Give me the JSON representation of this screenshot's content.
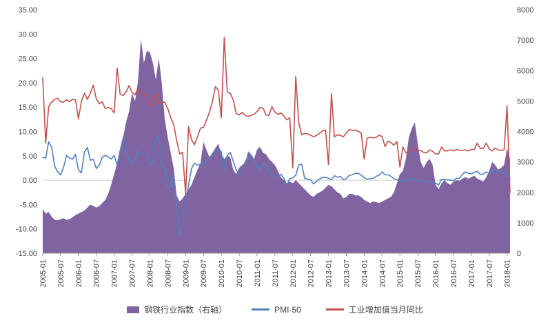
{
  "chart_data": {
    "type": "combo",
    "title": "",
    "x_start": "2005-01",
    "x_end": "2018-02",
    "x_tick_every": 6,
    "x_tick_labels": [
      "2005-01",
      "2005-07",
      "2006-01",
      "2006-07",
      "2007-01",
      "2007-07",
      "2008-01",
      "2008-07",
      "2009-01",
      "2009-07",
      "2010-01",
      "2010-07",
      "2011-01",
      "2011-07",
      "2012-01",
      "2012-07",
      "2013-01",
      "2013-07",
      "2014-01",
      "2014-07",
      "2015-01",
      "2015-07",
      "2016-01",
      "2016-07",
      "2017-01",
      "2017-07",
      "2018-01"
    ],
    "left_axis": {
      "min": -15,
      "max": 35,
      "step": 5,
      "tick_labels": [
        "35.00",
        "30.00",
        "25.00",
        "20.00",
        "15.00",
        "10.00",
        "5.00",
        "0.00",
        "-5.00",
        "-10.00",
        "-15.00"
      ]
    },
    "right_axis": {
      "min": 0,
      "max": 8000,
      "step": 1000,
      "tick_labels": [
        "8000",
        "7000",
        "6000",
        "5000",
        "4000",
        "3000",
        "2000",
        "1000",
        "0"
      ]
    },
    "zero_line_color": "#C9C9C9",
    "legend_position": "bottom",
    "grid": "zero-line-only",
    "series": [
      {
        "name": "钢铁行业指数（右轴）",
        "type": "area",
        "axis": "right",
        "color": "#8064A2",
        "values": [
          1450,
          1300,
          1350,
          1200,
          1100,
          1080,
          1120,
          1150,
          1100,
          1120,
          1180,
          1250,
          1300,
          1350,
          1400,
          1500,
          1600,
          1550,
          1500,
          1550,
          1650,
          1750,
          1950,
          2250,
          2600,
          2950,
          3300,
          3800,
          4300,
          4650,
          5250,
          5000,
          5650,
          7050,
          6250,
          6650,
          6600,
          6250,
          5700,
          6400,
          5600,
          4400,
          3800,
          3300,
          2800,
          1900,
          1700,
          1800,
          1950,
          2100,
          2250,
          2500,
          2750,
          2950,
          3650,
          3400,
          3150,
          3300,
          3450,
          3600,
          3250,
          3100,
          3200,
          3150,
          2750,
          2600,
          2800,
          2900,
          2950,
          3350,
          3250,
          3100,
          3400,
          3500,
          3300,
          3250,
          3100,
          3000,
          2900,
          2700,
          2500,
          2400,
          2300,
          2350,
          2300,
          2400,
          2300,
          2200,
          2100,
          2000,
          1900,
          1850,
          1950,
          2000,
          2050,
          2150,
          2250,
          2200,
          2100,
          2000,
          1950,
          1800,
          1850,
          1950,
          1950,
          1900,
          1900,
          1850,
          1750,
          1700,
          1650,
          1700,
          1680,
          1650,
          1700,
          1750,
          1800,
          1850,
          2000,
          2300,
          2600,
          2700,
          3100,
          3800,
          4100,
          4300,
          3600,
          3000,
          2800,
          3000,
          3100,
          2900,
          2250,
          2100,
          2300,
          2400,
          2300,
          2250,
          2350,
          2400,
          2380,
          2450,
          2500,
          2450,
          2500,
          2550,
          2450,
          2400,
          2350,
          2500,
          2700,
          3000,
          2900,
          2750,
          2800,
          2900,
          3450,
          3100
        ]
      },
      {
        "name": "PMI-50",
        "type": "line",
        "axis": "left",
        "color": "#4F81BD",
        "values": [
          4.7,
          4.5,
          7.9,
          6.7,
          2.9,
          1.7,
          1.1,
          2.6,
          5.1,
          4.5,
          4.3,
          5.3,
          2.1,
          1.5,
          5.8,
          6.7,
          4.1,
          4.3,
          2.4,
          3.1,
          4.7,
          5.1,
          4.8,
          4.3,
          5.1,
          3.1,
          6.1,
          8.6,
          5.9,
          4.5,
          3.3,
          4.0,
          6.1,
          5.2,
          5.4,
          5.3,
          3.0,
          3.4,
          8.4,
          9.2,
          3.3,
          2.0,
          -1.6,
          -1.6,
          1.2,
          -5.4,
          -11.2,
          -8.8,
          -4.7,
          -1.0,
          2.4,
          3.5,
          3.1,
          3.2,
          3.3,
          4.0,
          4.3,
          5.2,
          5.2,
          6.6,
          5.8,
          2.0,
          5.1,
          5.7,
          3.9,
          2.1,
          1.2,
          1.7,
          3.8,
          4.7,
          5.2,
          3.9,
          2.9,
          2.2,
          3.4,
          2.9,
          2.0,
          0.9,
          0.7,
          0.9,
          1.2,
          0.4,
          -1.0,
          0.3,
          0.5,
          1.0,
          3.1,
          3.3,
          0.4,
          0.2,
          0.1,
          -0.8,
          -0.2,
          0.2,
          0.6,
          0.6,
          0.4,
          0.1,
          0.9,
          0.6,
          0.8,
          0.1,
          0.3,
          1.0,
          1.1,
          1.4,
          1.4,
          1.0,
          0.5,
          0.2,
          0.3,
          0.4,
          0.8,
          1.0,
          1.7,
          1.1,
          1.1,
          0.8,
          0.3,
          0.1,
          -0.2,
          -0.1,
          0.1,
          0.1,
          0.2,
          0.2,
          0.0,
          -0.3,
          -0.2,
          -0.2,
          -0.4,
          -0.3,
          -0.6,
          -1.0,
          0.2,
          0.1,
          0.1,
          0.0,
          -0.1,
          0.4,
          0.4,
          1.2,
          1.7,
          1.4,
          1.3,
          1.6,
          1.8,
          1.2,
          1.2,
          1.7,
          1.4,
          1.7,
          2.4,
          1.6,
          1.8,
          1.6,
          1.3,
          0.3
        ]
      },
      {
        "name": "工业增加值当月同比",
        "type": "line",
        "axis": "left",
        "color": "#C0504D",
        "values": [
          21.0,
          7.6,
          15.1,
          16.0,
          16.6,
          16.8,
          16.1,
          16.0,
          16.5,
          16.1,
          16.6,
          16.5,
          12.6,
          16.2,
          17.8,
          16.6,
          17.9,
          19.5,
          16.7,
          15.7,
          16.1,
          14.7,
          14.9,
          14.7,
          13.8,
          23.0,
          17.6,
          17.4,
          18.1,
          19.4,
          18.0,
          17.5,
          18.9,
          17.9,
          17.3,
          17.4,
          15.4,
          15.4,
          17.8,
          15.7,
          16.0,
          16.0,
          14.7,
          12.8,
          11.4,
          8.2,
          5.4,
          5.7,
          -2.9,
          11.0,
          8.3,
          7.3,
          8.9,
          10.7,
          10.8,
          12.3,
          13.9,
          16.1,
          19.2,
          18.5,
          12.8,
          29.3,
          18.1,
          17.8,
          16.5,
          13.7,
          13.4,
          13.9,
          13.3,
          13.1,
          13.3,
          13.5,
          14.1,
          14.9,
          14.8,
          13.4,
          13.3,
          15.1,
          14.0,
          13.5,
          13.8,
          13.2,
          12.4,
          12.8,
          2.5,
          21.3,
          11.9,
          9.3,
          9.6,
          9.5,
          9.2,
          8.9,
          9.2,
          9.6,
          10.1,
          10.3,
          3.2,
          17.8,
          8.9,
          9.3,
          9.2,
          8.9,
          9.7,
          10.4,
          10.2,
          10.3,
          10.0,
          9.7,
          4.3,
          8.6,
          8.8,
          8.7,
          8.8,
          9.2,
          9.0,
          6.9,
          8.0,
          7.7,
          7.2,
          7.9,
          2.7,
          6.8,
          5.6,
          5.9,
          6.1,
          6.8,
          6.0,
          6.1,
          5.7,
          5.6,
          6.2,
          5.9,
          5.4,
          5.4,
          6.8,
          6.0,
          6.0,
          6.2,
          6.0,
          6.3,
          6.1,
          6.1,
          6.2,
          6.0,
          6.3,
          6.3,
          7.6,
          6.5,
          6.5,
          7.6,
          6.4,
          6.0,
          6.6,
          6.2,
          6.1,
          6.2,
          15.3,
          -2.5
        ]
      }
    ]
  }
}
